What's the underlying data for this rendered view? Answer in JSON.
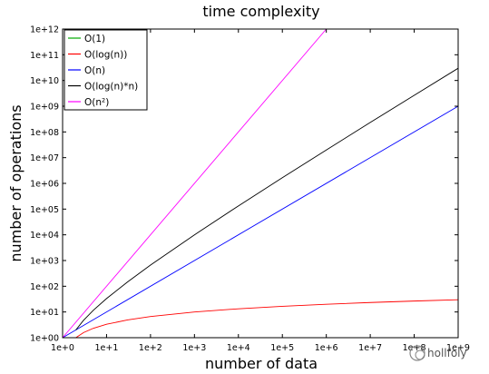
{
  "chart_data": {
    "type": "line",
    "title": "time complexity",
    "xlabel": "number of data",
    "ylabel": "number of operations",
    "x_scale": "log",
    "y_scale": "log",
    "xlim": [
      1,
      1000000000
    ],
    "ylim": [
      1,
      1000000000000
    ],
    "x_ticks": [
      "1e+0",
      "1e+1",
      "1e+2",
      "1e+3",
      "1e+4",
      "1e+5",
      "1e+6",
      "1e+7",
      "1e+8",
      "1e+9"
    ],
    "y_ticks": [
      "1e+00",
      "1e+01",
      "1e+02",
      "1e+03",
      "1e+04",
      "1e+05",
      "1e+06",
      "1e+07",
      "1e+08",
      "1e+09",
      "1e+10",
      "1e+11",
      "1e+12"
    ],
    "grid": false,
    "legend_position": "top-left",
    "series": [
      {
        "name": "O(1)",
        "color": "#00aa00",
        "x": [
          1,
          1000000000
        ],
        "y": [
          1,
          1
        ]
      },
      {
        "name": "O(log(n))",
        "color": "#ff0000",
        "x": [
          2,
          3,
          5,
          10,
          30,
          100,
          1000,
          10000,
          100000,
          1000000,
          10000000,
          100000000,
          1000000000
        ],
        "y": [
          1,
          1.58,
          2.32,
          3.32,
          4.91,
          6.64,
          9.97,
          13.3,
          16.6,
          19.9,
          23.3,
          26.6,
          29.9
        ]
      },
      {
        "name": "O(n)",
        "color": "#0000ff",
        "x": [
          1,
          1000000000
        ],
        "y": [
          1,
          1000000000
        ]
      },
      {
        "name": "O(log(n)*n)",
        "color": "#000000",
        "x": [
          2,
          3,
          5,
          10,
          30,
          100,
          1000,
          10000,
          100000,
          1000000,
          10000000,
          100000000,
          1000000000
        ],
        "y": [
          2,
          4.75,
          11.6,
          33.2,
          147,
          664,
          9970,
          133000,
          1660000,
          19900000,
          233000000,
          2660000000,
          29900000000
        ]
      },
      {
        "name": "O(n²)",
        "color": "#ff00ff",
        "x": [
          1,
          1000000
        ],
        "y": [
          1,
          1000000000000
        ]
      }
    ]
  },
  "watermark": "hollfoly"
}
